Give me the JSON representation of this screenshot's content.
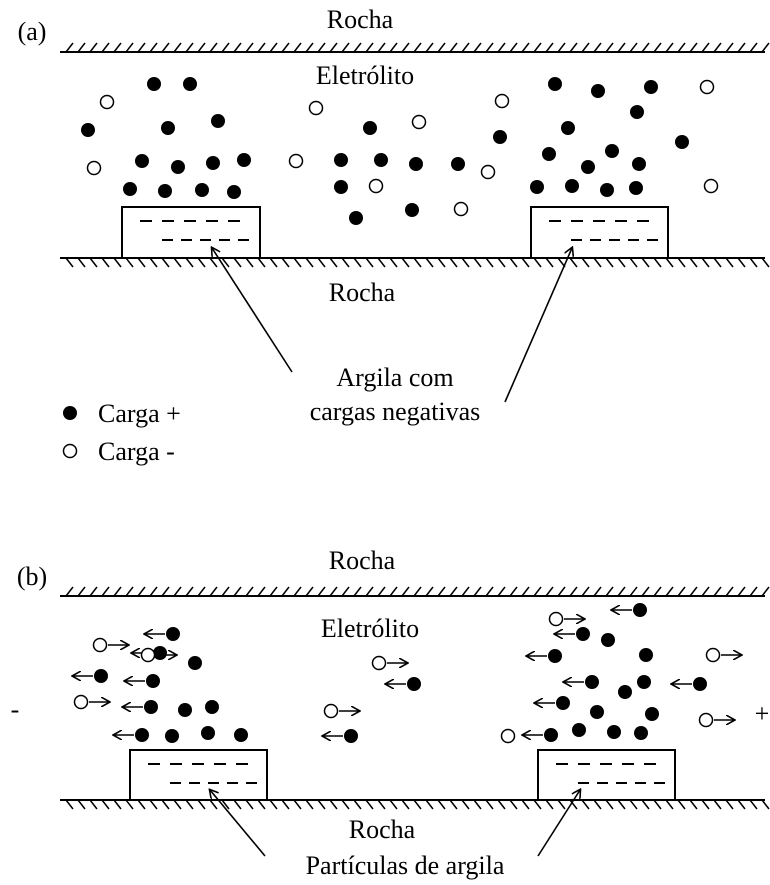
{
  "panels": [
    {
      "label": "(a)",
      "top_rock": "Rocha",
      "electrolyte": "Eletrólito",
      "bottom_rock": "Rocha",
      "annotation": [
        "Argila com",
        "cargas negativas"
      ]
    },
    {
      "label": "(b)",
      "top_rock": "Rocha",
      "electrolyte": "Eletrólito",
      "bottom_rock": "Rocha",
      "annotation": [
        "Partículas de argila"
      ],
      "polarity": [
        "-",
        "+"
      ]
    }
  ],
  "legend": [
    {
      "label": "Carga +"
    },
    {
      "label": "Carga -"
    }
  ]
}
